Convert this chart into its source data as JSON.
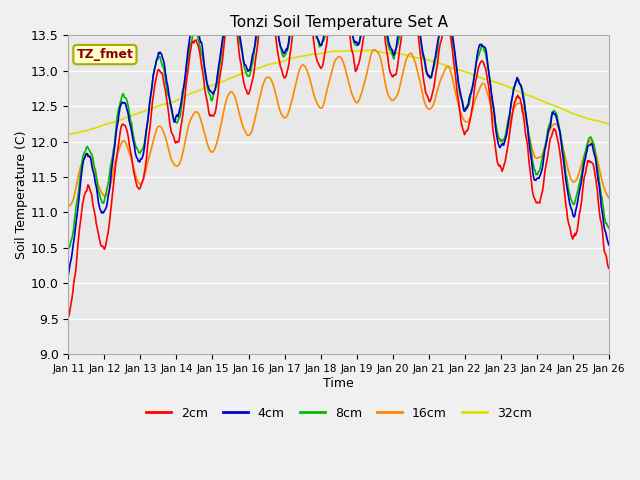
{
  "title": "Tonzi Soil Temperature Set A",
  "xlabel": "Time",
  "ylabel": "Soil Temperature (C)",
  "ylim": [
    9.0,
    13.5
  ],
  "annotation_text": "TZ_fmet",
  "annotation_color": "#8B0000",
  "annotation_bg": "#FFFFCC",
  "annotation_border": "#AAAA00",
  "fig_bg": "#F0F0F0",
  "plot_bg": "#E8E8E8",
  "legend_entries": [
    "2cm",
    "4cm",
    "8cm",
    "16cm",
    "32cm"
  ],
  "line_colors": [
    "#FF0000",
    "#0000CC",
    "#00BB00",
    "#FF8800",
    "#DDDD00"
  ],
  "tick_labels": [
    "Jan 11",
    "Jan 12",
    "Jan 13",
    "Jan 14",
    "Jan 15",
    "Jan 16",
    "Jan 17",
    "Jan 18",
    "Jan 19",
    "Jan 20",
    "Jan 21",
    "Jan 22",
    "Jan 23",
    "Jan 24",
    "Jan 25",
    "Jan 26"
  ],
  "yticks": [
    9.0,
    9.5,
    10.0,
    10.5,
    11.0,
    11.5,
    12.0,
    12.5,
    13.0,
    13.5
  ],
  "num_days": 15,
  "ppd": 48
}
